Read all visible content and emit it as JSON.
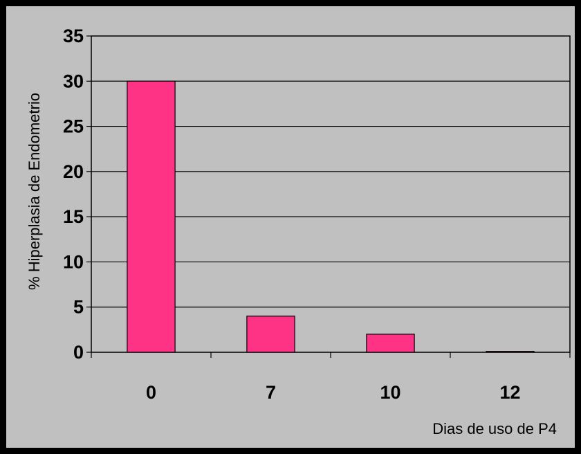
{
  "chart_data": {
    "type": "bar",
    "categories": [
      "0",
      "7",
      "10",
      "12"
    ],
    "values": [
      30,
      4,
      2,
      0.1
    ],
    "ylabel": "% Hiperplasia de Endometrio",
    "xlabel": "Dias de uso de P4",
    "ylim": [
      0,
      35
    ],
    "yticks": [
      0,
      5,
      10,
      15,
      20,
      25,
      30,
      35
    ],
    "grid": true,
    "legend": "none",
    "colors": {
      "bar": "#FF3385",
      "plot_background": "#C0C0C0",
      "frame": "#000000"
    }
  }
}
